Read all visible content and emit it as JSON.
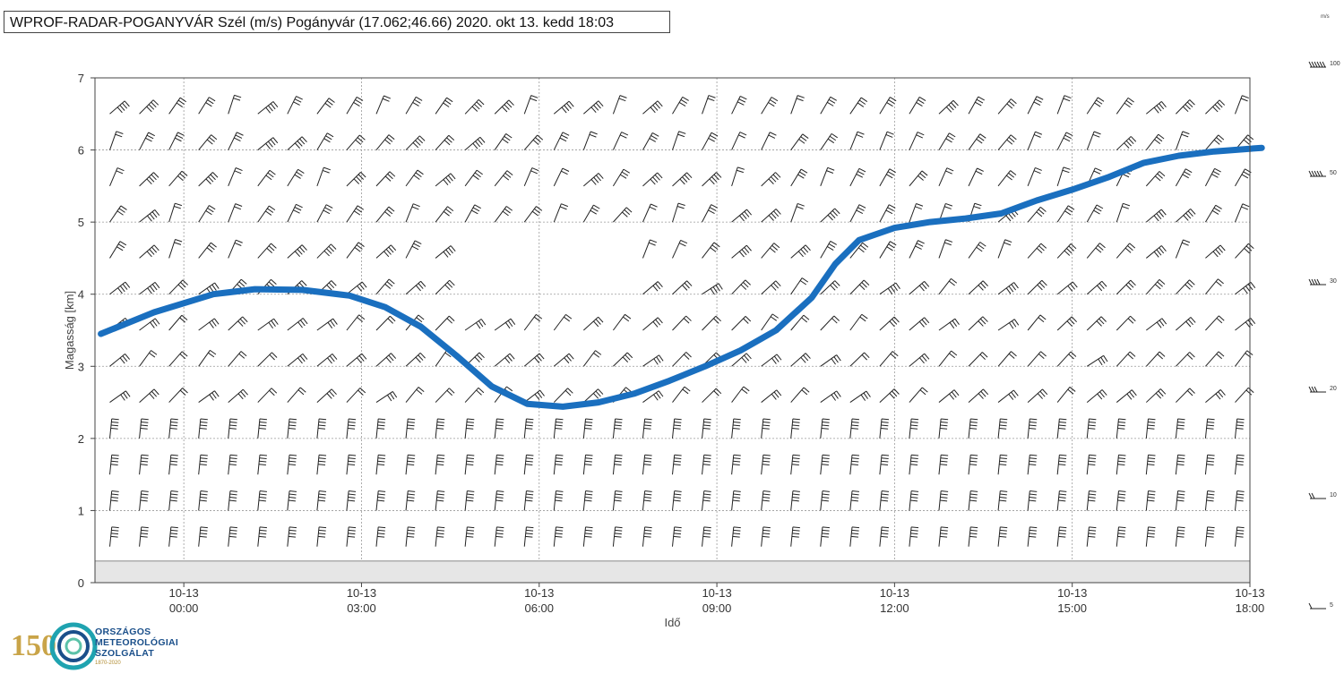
{
  "header": {
    "title": "WPROF-RADAR-POGANYVÁR Szél (m/s) Pogányvár (17.062;46.66) 2020. okt 13. kedd 18:03"
  },
  "legend": {
    "unit": "m/s",
    "speeds": [
      "100",
      "50",
      "30",
      "20",
      "10",
      "5"
    ]
  },
  "logo": {
    "line1": "ORSZÁGOS",
    "line2": "METEOROLÓGIAI",
    "line3": "SZOLGÁLAT",
    "years": "1870-2020",
    "emblem_text": "150"
  },
  "colors": {
    "line": "#1a6fbf",
    "grid": "#9a9a9a",
    "barb": "#222222",
    "ground": "#e6e6e6"
  },
  "chart_data": {
    "type": "line",
    "xlabel": "Idő",
    "ylabel": "Magasság [km]",
    "ylim": [
      0,
      7
    ],
    "y_ticks": [
      "0",
      "1",
      "2",
      "3",
      "4",
      "5",
      "6",
      "7"
    ],
    "x_ticks": [
      {
        "date": "10-13",
        "time": "00:00"
      },
      {
        "date": "10-13",
        "time": "03:00"
      },
      {
        "date": "10-13",
        "time": "06:00"
      },
      {
        "date": "10-13",
        "time": "09:00"
      },
      {
        "date": "10-13",
        "time": "12:00"
      },
      {
        "date": "10-13",
        "time": "15:00"
      },
      {
        "date": "10-13",
        "time": "18:00"
      }
    ],
    "xlim_hours": [
      -1.5,
      18.0
    ],
    "ground_level_km": 0.3,
    "series": [
      {
        "x_hours": [
          -1.4,
          -0.5,
          0.5,
          1.2,
          2.0,
          2.8,
          3.4,
          4.0,
          4.6,
          5.2,
          5.8,
          6.4,
          7.0,
          7.6,
          8.2,
          8.8,
          9.4,
          10.0,
          10.6,
          11.0,
          11.4,
          12.0,
          12.6,
          13.2,
          13.8,
          14.4,
          15.0,
          15.6,
          16.2,
          16.8,
          17.4,
          18.2
        ],
        "values": [
          3.45,
          3.75,
          4.0,
          4.07,
          4.06,
          3.98,
          3.82,
          3.55,
          3.15,
          2.72,
          2.48,
          2.44,
          2.5,
          2.62,
          2.8,
          3.0,
          3.22,
          3.5,
          3.95,
          4.42,
          4.75,
          4.92,
          5.0,
          5.05,
          5.12,
          5.3,
          5.45,
          5.62,
          5.82,
          5.92,
          5.98,
          6.03
        ]
      }
    ],
    "barb_time_step_hours": 0.5,
    "barb_profiles": [
      {
        "from_hour": -1.5,
        "to_hour": 4.5,
        "height_ranges_km": [
          [
            0.5,
            6.9
          ]
        ]
      },
      {
        "from_hour": 4.5,
        "to_hour": 7.5,
        "height_ranges_km": [
          [
            0.5,
            3.6
          ],
          [
            5.0,
            6.9
          ]
        ]
      },
      {
        "from_hour": 7.5,
        "to_hour": 18.0,
        "height_ranges_km": [
          [
            0.5,
            6.9
          ]
        ]
      }
    ]
  }
}
